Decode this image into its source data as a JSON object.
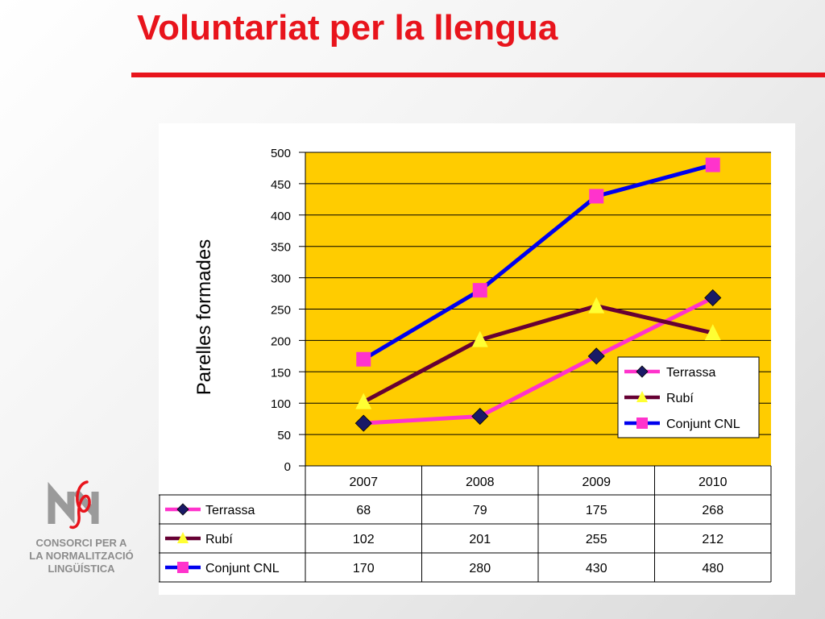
{
  "slide": {
    "title": "Voluntariat per la llengua",
    "logo_lines": [
      "CONSORCI PER A",
      "LA NORMALITZACIÓ",
      "LINGÜÍSTICA"
    ]
  },
  "colors": {
    "title": "#e8141c",
    "plot_background": "#ffcc00",
    "Terrassa": "#ff33cc",
    "Terrassa_marker": "#1a1a66",
    "Rubí": "#660033",
    "Rubí_marker": "#ffff33",
    "Conjunt CNL": "#0000ee",
    "Conjunt CNL_marker": "#ff33cc"
  },
  "chart_data": {
    "type": "line",
    "title": "",
    "xlabel": "",
    "ylabel": "Parelles formades",
    "categories": [
      "2007",
      "2008",
      "2009",
      "2010"
    ],
    "series": [
      {
        "name": "Terrassa",
        "marker": "diamond",
        "values": [
          68,
          79,
          175,
          268
        ]
      },
      {
        "name": "Rubí",
        "marker": "triangle",
        "values": [
          102,
          201,
          255,
          212
        ]
      },
      {
        "name": "Conjunt CNL",
        "marker": "square",
        "values": [
          170,
          280,
          430,
          480
        ]
      }
    ],
    "ylim": [
      0,
      500
    ],
    "yticks": [
      "0",
      "50",
      "100",
      "150",
      "200",
      "250",
      "300",
      "350",
      "400",
      "450",
      "500"
    ],
    "grid": true,
    "legend": "bottom-right",
    "data_table": true
  }
}
